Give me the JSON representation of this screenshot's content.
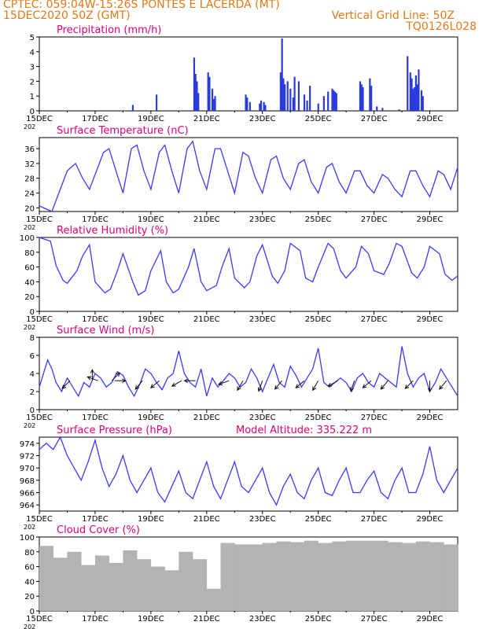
{
  "header": {
    "line1_left": "CPTEC:   059:04W-15:26S   PONTES E LACERDA (MT)",
    "line2_left": "15DEC2020 50Z (GMT)",
    "line2_right": "Vertical Grid Line: 50Z",
    "line3_right": "TQ0126L028",
    "color": "#e07a1a"
  },
  "colors": {
    "title": "#e0007a",
    "series": "#3a3aff",
    "bar": "#2b3bdc",
    "cloud": "#b3b3b3",
    "arrow": "#111111"
  },
  "x_axis": {
    "ticks": [
      "15DEC",
      "17DEC",
      "19DEC",
      "21DEC",
      "23DEC",
      "25DEC",
      "27DEC",
      "29DEC"
    ],
    "tick_days": [
      0,
      2,
      4,
      6,
      8,
      10,
      12,
      14
    ],
    "range_days": [
      0,
      15
    ],
    "under_label": "202"
  },
  "panels": [
    {
      "id": "precip",
      "title": "Precipitation  (mm/h)",
      "extra": ""
    },
    {
      "id": "temp",
      "title": "Surface Temperature  (nC)",
      "extra": ""
    },
    {
      "id": "rh",
      "title": "Relative Humidity  (%)",
      "extra": ""
    },
    {
      "id": "wind",
      "title": "Surface  Wind  (m/s)",
      "extra": ""
    },
    {
      "id": "press",
      "title": "Surface Pressure  (hPa)",
      "extra": "Model Altitude: 335.222  m"
    },
    {
      "id": "cloud",
      "title": "Cloud Cover  (%)",
      "extra": ""
    }
  ],
  "chart_data": [
    {
      "type": "bar",
      "panel": "precip",
      "title": "Precipitation  (mm/h)",
      "ylim": [
        0,
        5
      ],
      "yticks": [
        0,
        1,
        2,
        3,
        4,
        5
      ],
      "x_days": [
        3.35,
        4.2,
        5.55,
        5.6,
        5.65,
        5.7,
        6.05,
        6.1,
        6.2,
        6.25,
        6.3,
        7.4,
        7.45,
        7.55,
        7.9,
        7.95,
        8.05,
        8.1,
        8.65,
        8.7,
        8.75,
        8.8,
        8.9,
        9.0,
        9.1,
        9.15,
        9.3,
        9.5,
        9.6,
        9.7,
        10.0,
        10.2,
        10.35,
        10.5,
        10.55,
        10.6,
        10.65,
        11.5,
        11.55,
        11.6,
        11.85,
        11.9,
        12.1,
        12.3,
        12.9,
        13.2,
        13.3,
        13.35,
        13.4,
        13.45,
        13.5,
        13.55,
        13.6,
        13.7,
        13.75
      ],
      "values": [
        0.4,
        1.1,
        3.6,
        2.5,
        2.0,
        1.2,
        2.6,
        2.3,
        1.5,
        0.8,
        1.0,
        1.1,
        0.9,
        0.6,
        0.5,
        0.7,
        0.6,
        0.4,
        2.6,
        4.9,
        2.2,
        1.8,
        2.0,
        1.5,
        0.9,
        2.3,
        2.0,
        1.1,
        0.7,
        1.7,
        0.5,
        1.0,
        1.3,
        1.5,
        1.4,
        1.3,
        1.2,
        2.0,
        1.8,
        1.6,
        2.2,
        1.7,
        0.3,
        0.2,
        0.1,
        3.7,
        2.6,
        2.2,
        1.5,
        1.6,
        2.4,
        1.8,
        2.8,
        1.4,
        1.0
      ]
    },
    {
      "type": "line",
      "panel": "temp",
      "title": "Surface Temperature  (nC)",
      "ylim": [
        19,
        39
      ],
      "yticks": [
        20,
        24,
        28,
        32,
        36
      ],
      "x_days": [
        0,
        0.3,
        0.45,
        0.6,
        1.0,
        1.3,
        1.55,
        1.8,
        2.3,
        2.5,
        2.75,
        3.0,
        3.3,
        3.5,
        3.75,
        4.0,
        4.3,
        4.5,
        4.75,
        5.0,
        5.3,
        5.5,
        5.75,
        6.0,
        6.3,
        6.5,
        6.75,
        7.0,
        7.3,
        7.5,
        7.75,
        8.0,
        8.3,
        8.5,
        8.75,
        9.0,
        9.3,
        9.5,
        9.75,
        10.0,
        10.3,
        10.5,
        10.75,
        11.0,
        11.3,
        11.5,
        11.75,
        12.0,
        12.3,
        12.5,
        12.75,
        13.0,
        13.3,
        13.5,
        13.75,
        14.0,
        14.3,
        14.5,
        14.75,
        15.0
      ],
      "values": [
        20.5,
        19.5,
        19,
        22,
        30,
        32,
        28,
        25,
        35,
        36,
        30,
        24,
        36,
        37,
        30,
        25,
        35,
        37,
        30,
        24,
        36,
        38,
        30,
        25,
        36,
        36,
        30,
        24,
        35,
        34,
        28,
        24,
        33,
        34,
        28,
        25,
        32,
        33,
        27,
        24,
        31,
        32,
        27,
        24,
        30,
        30,
        26,
        24,
        29,
        28,
        25,
        23,
        30,
        30,
        26,
        23,
        30,
        29,
        25,
        31
      ]
    },
    {
      "type": "line",
      "panel": "rh",
      "title": "Relative Humidity  (%)",
      "ylim": [
        0,
        100
      ],
      "yticks": [
        0,
        20,
        40,
        60,
        80,
        100
      ],
      "x_days": [
        0,
        0.4,
        0.6,
        0.85,
        1.0,
        1.35,
        1.55,
        1.8,
        2.0,
        2.35,
        2.55,
        2.8,
        3.0,
        3.35,
        3.55,
        3.8,
        4.0,
        4.35,
        4.55,
        4.8,
        5.0,
        5.35,
        5.55,
        5.8,
        6.0,
        6.35,
        6.55,
        6.8,
        7.0,
        7.35,
        7.55,
        7.8,
        8.0,
        8.35,
        8.55,
        8.8,
        9.0,
        9.35,
        9.55,
        9.8,
        10.0,
        10.35,
        10.55,
        10.8,
        11.0,
        11.35,
        11.55,
        11.8,
        12.0,
        12.35,
        12.55,
        12.8,
        13.0,
        13.35,
        13.55,
        13.8,
        14.0,
        14.35,
        14.55,
        14.8,
        15.0
      ],
      "values": [
        100,
        95,
        62,
        42,
        38,
        55,
        75,
        90,
        40,
        25,
        30,
        55,
        78,
        40,
        22,
        28,
        55,
        82,
        40,
        25,
        30,
        60,
        85,
        40,
        28,
        35,
        60,
        85,
        45,
        32,
        40,
        75,
        90,
        48,
        38,
        55,
        92,
        82,
        45,
        40,
        60,
        92,
        85,
        55,
        45,
        60,
        88,
        78,
        55,
        50,
        65,
        92,
        88,
        52,
        45,
        60,
        88,
        78,
        50,
        42,
        48
      ]
    },
    {
      "type": "line",
      "panel": "wind",
      "title": "Surface  Wind  (m/s)",
      "ylim": [
        0,
        8
      ],
      "yticks": [
        0,
        2,
        4,
        6,
        8
      ],
      "x_days": [
        0,
        0.3,
        0.45,
        0.6,
        0.8,
        1.0,
        1.2,
        1.4,
        1.6,
        1.8,
        2.0,
        2.2,
        2.4,
        2.6,
        2.8,
        3.0,
        3.2,
        3.4,
        3.6,
        3.8,
        4.0,
        4.2,
        4.4,
        4.6,
        4.8,
        5.0,
        5.2,
        5.4,
        5.6,
        5.8,
        6.0,
        6.2,
        6.4,
        6.6,
        6.8,
        7.0,
        7.2,
        7.4,
        7.6,
        7.8,
        8.0,
        8.2,
        8.4,
        8.6,
        8.8,
        9.0,
        9.2,
        9.4,
        9.6,
        9.8,
        10.0,
        10.2,
        10.4,
        10.6,
        10.8,
        11.0,
        11.2,
        11.4,
        11.6,
        11.8,
        12.0,
        12.2,
        12.4,
        12.6,
        12.8,
        13.0,
        13.2,
        13.4,
        13.6,
        13.8,
        14.0,
        14.2,
        14.4,
        14.6,
        14.8,
        15.0
      ],
      "values": [
        2.5,
        5.5,
        4.5,
        3.0,
        2.0,
        3.5,
        2.5,
        1.5,
        3.0,
        2.5,
        4.0,
        3.5,
        2.5,
        3.0,
        4.2,
        3.8,
        2.5,
        1.5,
        2.8,
        4.5,
        4.0,
        3.0,
        2.2,
        3.5,
        4.0,
        6.5,
        4.0,
        3.0,
        2.5,
        4.5,
        1.5,
        3.5,
        2.5,
        3.2,
        4.0,
        3.5,
        2.5,
        3.0,
        4.5,
        3.5,
        2.0,
        3.5,
        5.0,
        3.0,
        2.5,
        4.8,
        3.8,
        2.5,
        3.5,
        4.5,
        6.8,
        3.0,
        2.5,
        3.0,
        3.5,
        3.0,
        2.0,
        3.5,
        4.0,
        3.0,
        2.5,
        4.0,
        3.5,
        3.0,
        2.5,
        7.0,
        4.0,
        2.5,
        3.5,
        4.0,
        2.0,
        3.0,
        4.5,
        3.5,
        2.5,
        1.5
      ]
    },
    {
      "type": "line",
      "panel": "press",
      "title": "Surface Pressure  (hPa)",
      "ylim": [
        963,
        975
      ],
      "yticks": [
        964,
        966,
        968,
        970,
        972,
        974
      ],
      "x_days": [
        0,
        0.25,
        0.5,
        0.75,
        1.0,
        1.25,
        1.5,
        1.75,
        2.0,
        2.25,
        2.5,
        2.75,
        3.0,
        3.25,
        3.5,
        3.75,
        4.0,
        4.25,
        4.5,
        4.75,
        5.0,
        5.25,
        5.5,
        5.75,
        6.0,
        6.25,
        6.5,
        6.75,
        7.0,
        7.25,
        7.5,
        7.75,
        8.0,
        8.25,
        8.5,
        8.75,
        9.0,
        9.25,
        9.5,
        9.75,
        10.0,
        10.25,
        10.5,
        10.75,
        11.0,
        11.25,
        11.5,
        11.75,
        12.0,
        12.25,
        12.5,
        12.75,
        13.0,
        13.25,
        13.5,
        13.75,
        14.0,
        14.25,
        14.5,
        14.75,
        15.0
      ],
      "values": [
        973,
        974,
        973,
        975,
        972,
        970,
        968,
        971,
        974.5,
        970,
        967,
        969,
        972,
        968,
        966,
        968,
        970,
        966,
        964.5,
        967,
        969.5,
        966,
        965,
        968,
        971,
        967,
        965,
        968,
        971,
        967,
        966,
        968,
        970,
        966,
        964,
        967,
        969,
        966,
        965,
        968,
        970,
        966,
        965.5,
        968,
        970,
        966,
        966,
        968,
        969.5,
        966,
        965,
        968,
        970,
        966,
        966,
        969,
        973.5,
        968,
        966,
        968,
        970
      ]
    },
    {
      "type": "bar",
      "panel": "cloud",
      "title": "Cloud Cover  (%)",
      "ylim": [
        0,
        100
      ],
      "yticks": [
        0,
        20,
        40,
        60,
        80,
        100
      ],
      "x_days": [
        0,
        0.5,
        1.0,
        1.5,
        2.0,
        2.5,
        3.0,
        3.5,
        4.0,
        4.5,
        5.0,
        5.5,
        6.0,
        6.5,
        7.0,
        7.5,
        8.0,
        8.5,
        9.0,
        9.5,
        10.0,
        10.5,
        11.0,
        11.5,
        12.0,
        12.5,
        13.0,
        13.5,
        14.0,
        14.5
      ],
      "values": [
        88,
        72,
        80,
        62,
        75,
        65,
        82,
        70,
        60,
        55,
        80,
        70,
        30,
        92,
        90,
        90,
        92,
        94,
        93,
        95,
        92,
        94,
        95,
        95,
        95,
        93,
        92,
        94,
        93,
        90
      ]
    }
  ]
}
